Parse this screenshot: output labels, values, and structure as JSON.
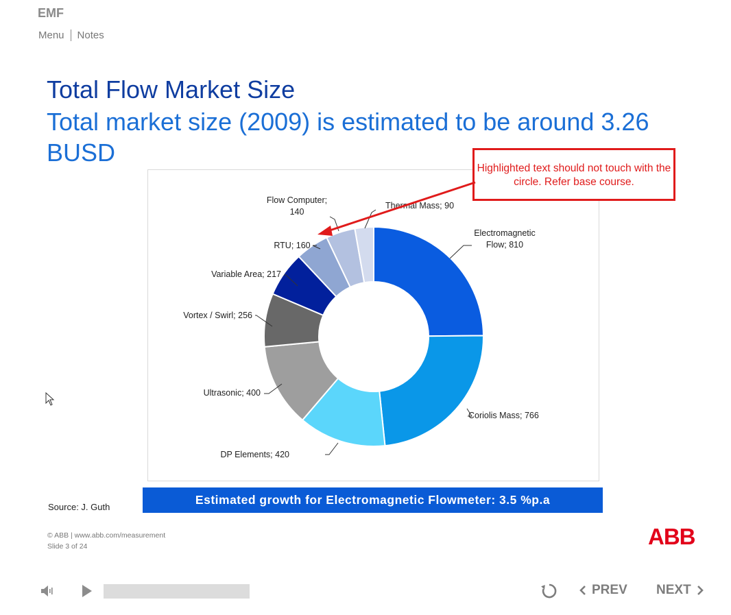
{
  "header": {
    "app_title": "EMF",
    "nav": [
      {
        "label": "Menu"
      },
      {
        "label": "Notes"
      }
    ]
  },
  "slide": {
    "title": "Total Flow Market Size",
    "subtitle": "Total market size (2009) is estimated to be around 3.26 BUSD"
  },
  "chart_data": {
    "type": "pie",
    "donut": true,
    "slices": [
      {
        "label": "Electromagnetic Flow; 810",
        "value": 810,
        "color": "#0a5ce0"
      },
      {
        "label": "Coriolis Mass; 766",
        "value": 766,
        "color": "#0a97e8"
      },
      {
        "label": "DP Elements; 420",
        "value": 420,
        "color": "#5bd6fb"
      },
      {
        "label": "Ultrasonic; 400",
        "value": 400,
        "color": "#9e9e9e"
      },
      {
        "label": "Vortex / Swirl; 256",
        "value": 256,
        "color": "#686868"
      },
      {
        "label": "Variable Area; 217",
        "value": 217,
        "color": "#02209c"
      },
      {
        "label": "RTU; 160",
        "value": 160,
        "color": "#8fa6d2"
      },
      {
        "label": "Flow Computer; 140",
        "value": 140,
        "color": "#b3c1e0"
      },
      {
        "label": "Thermal Mass; 90",
        "value": 90,
        "color": "#d3dbee"
      }
    ]
  },
  "callout": {
    "text": "Highlighted text should not touch with the circle. Refer base course.",
    "color": "#e01b1b"
  },
  "source": "Source: J. Guth",
  "growth_banner": "Estimated growth for Electromagnetic Flowmeter: 3.5 %p.a",
  "footer": {
    "copyright": "© ABB | www.abb.com/measurement",
    "slide_number": "Slide 3 of 24"
  },
  "logo": "ABB",
  "player": {
    "progress": 0,
    "prev_label": "PREV",
    "next_label": "NEXT"
  },
  "icons": [
    "volume-icon",
    "play-icon",
    "replay-icon",
    "chevron-left-icon",
    "chevron-right-icon",
    "cursor-icon"
  ]
}
